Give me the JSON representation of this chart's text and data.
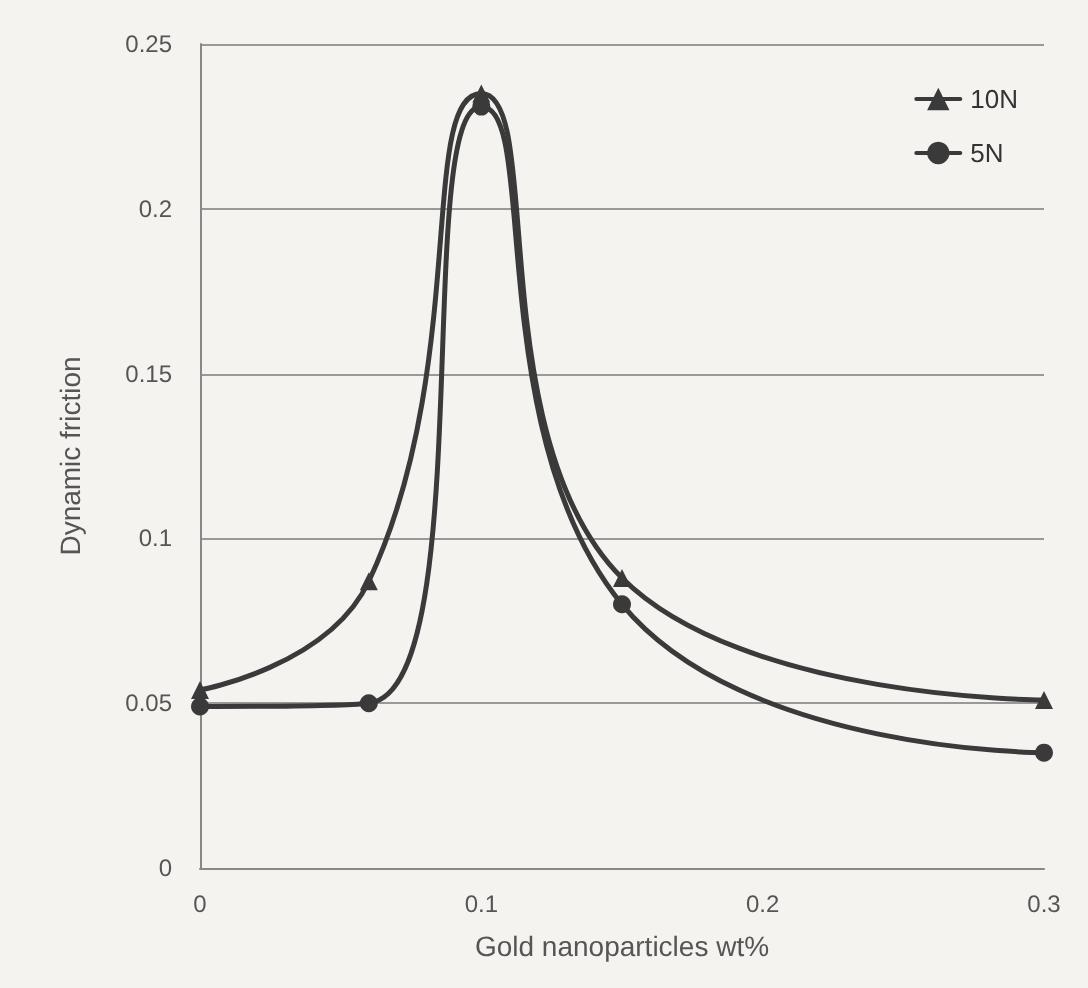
{
  "chart_data": {
    "type": "line",
    "xlabel": "Gold nanoparticles wt%",
    "ylabel": "Dynamic friction",
    "xlim": [
      0,
      0.3
    ],
    "xticks": [
      0,
      0.1,
      0.2,
      0.3
    ],
    "ylim": [
      0,
      0.25
    ],
    "yticks": [
      0,
      0.05,
      0.1,
      0.15,
      0.2,
      0.25
    ],
    "grid": "y",
    "legend": "top right",
    "series": [
      {
        "name": "10N",
        "color": "#3a3a3a",
        "marker": "triangle",
        "x": [
          0,
          0.06,
          0.1,
          0.15,
          0.3
        ],
        "values": [
          0.054,
          0.087,
          0.235,
          0.088,
          0.051
        ]
      },
      {
        "name": "5N",
        "color": "#3a3a3a",
        "marker": "circle",
        "x": [
          0,
          0.06,
          0.1,
          0.15,
          0.3
        ],
        "values": [
          0.049,
          0.05,
          0.231,
          0.08,
          0.035
        ]
      }
    ]
  }
}
